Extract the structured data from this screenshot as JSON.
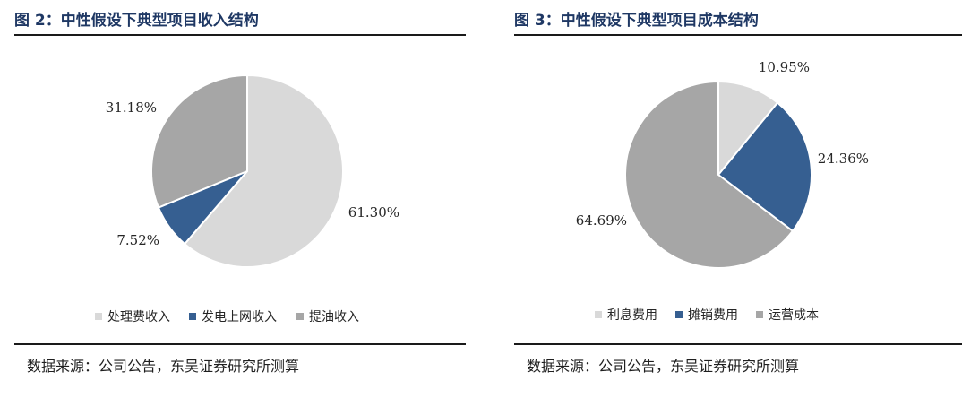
{
  "chart_data": [
    {
      "type": "pie",
      "title": "图 2：中性假设下典型项目收入结构",
      "slices": [
        {
          "label": "处理费收入",
          "value": 61.3,
          "value_label": "61.30%",
          "color": "#d9d9d9"
        },
        {
          "label": "发电上网收入",
          "value": 7.52,
          "value_label": "7.52%",
          "color": "#365f91"
        },
        {
          "label": "提油收入",
          "value": 31.18,
          "value_label": "31.18%",
          "color": "#a6a6a6"
        }
      ],
      "legend_position": "bottom",
      "source": "数据来源：公司公告，东吴证券研究所测算"
    },
    {
      "type": "pie",
      "title": "图 3：中性假设下典型项目成本结构",
      "slices": [
        {
          "label": "利息费用",
          "value": 10.95,
          "value_label": "10.95%",
          "color": "#d9d9d9"
        },
        {
          "label": "摊销费用",
          "value": 24.36,
          "value_label": "24.36%",
          "color": "#365f91"
        },
        {
          "label": "运营成本",
          "value": 64.69,
          "value_label": "64.69%",
          "color": "#a6a6a6"
        }
      ],
      "legend_position": "bottom",
      "source": "数据来源：公司公告，东吴证券研究所测算"
    }
  ]
}
